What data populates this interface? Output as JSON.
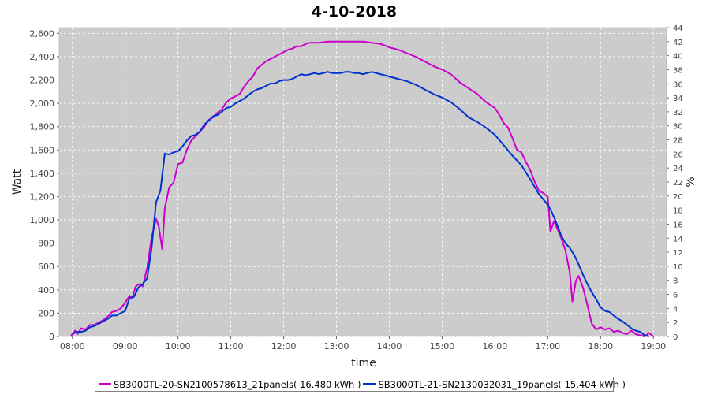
{
  "chart_data": {
    "type": "line",
    "title": "4-10-2018",
    "xlabel": "time",
    "ylabel": "Watt",
    "y2label": "%",
    "x_ticks": [
      "08:00",
      "09:00",
      "10:00",
      "11:00",
      "12:00",
      "13:00",
      "14:00",
      "15:00",
      "16:00",
      "17:00",
      "18:00",
      "19:00"
    ],
    "y_ticks": [
      "0",
      "200",
      "400",
      "600",
      "800",
      "1,000",
      "1,200",
      "1,400",
      "1,600",
      "1,800",
      "2,000",
      "2,200",
      "2,400",
      "2,600"
    ],
    "y2_ticks": [
      "0",
      "2",
      "4",
      "6",
      "8",
      "10",
      "12",
      "14",
      "16",
      "18",
      "20",
      "22",
      "24",
      "26",
      "28",
      "30",
      "32",
      "34",
      "36",
      "38",
      "40",
      "42",
      "44"
    ],
    "xlim": [
      "07:45",
      "19:15"
    ],
    "ylim": [
      0,
      2650
    ],
    "y2lim": [
      0,
      44
    ],
    "grid": true,
    "legend_position": "bottom",
    "plot_background": "#cccccc",
    "series": [
      {
        "name": "SB3000TL-20-SN2100578613_21panels( 16.480 kWh )",
        "color": "#cc00cc",
        "points": [
          [
            "07:58",
            0
          ],
          [
            "08:03",
            50
          ],
          [
            "08:06",
            20
          ],
          [
            "08:10",
            70
          ],
          [
            "08:15",
            60
          ],
          [
            "08:20",
            100
          ],
          [
            "08:25",
            100
          ],
          [
            "08:30",
            120
          ],
          [
            "08:35",
            140
          ],
          [
            "08:40",
            170
          ],
          [
            "08:45",
            210
          ],
          [
            "08:50",
            220
          ],
          [
            "08:55",
            240
          ],
          [
            "09:00",
            290
          ],
          [
            "09:05",
            350
          ],
          [
            "09:08",
            330
          ],
          [
            "09:12",
            430
          ],
          [
            "09:16",
            450
          ],
          [
            "09:20",
            430
          ],
          [
            "09:25",
            590
          ],
          [
            "09:30",
            850
          ],
          [
            "09:35",
            1010
          ],
          [
            "09:38",
            950
          ],
          [
            "09:42",
            750
          ],
          [
            "09:45",
            1100
          ],
          [
            "09:50",
            1280
          ],
          [
            "09:55",
            1320
          ],
          [
            "10:00",
            1480
          ],
          [
            "10:05",
            1490
          ],
          [
            "10:10",
            1600
          ],
          [
            "10:15",
            1680
          ],
          [
            "10:20",
            1720
          ],
          [
            "10:25",
            1760
          ],
          [
            "10:30",
            1800
          ],
          [
            "10:35",
            1860
          ],
          [
            "10:40",
            1880
          ],
          [
            "10:45",
            1920
          ],
          [
            "10:50",
            1950
          ],
          [
            "10:55",
            2010
          ],
          [
            "11:00",
            2040
          ],
          [
            "11:05",
            2060
          ],
          [
            "11:10",
            2080
          ],
          [
            "11:15",
            2140
          ],
          [
            "11:20",
            2190
          ],
          [
            "11:25",
            2230
          ],
          [
            "11:30",
            2300
          ],
          [
            "11:35",
            2330
          ],
          [
            "11:40",
            2360
          ],
          [
            "11:45",
            2380
          ],
          [
            "11:50",
            2400
          ],
          [
            "11:55",
            2420
          ],
          [
            "12:00",
            2440
          ],
          [
            "12:05",
            2460
          ],
          [
            "12:10",
            2470
          ],
          [
            "12:15",
            2490
          ],
          [
            "12:20",
            2490
          ],
          [
            "12:25",
            2510
          ],
          [
            "12:30",
            2520
          ],
          [
            "12:40",
            2520
          ],
          [
            "12:50",
            2530
          ],
          [
            "13:00",
            2530
          ],
          [
            "13:10",
            2530
          ],
          [
            "13:20",
            2530
          ],
          [
            "13:30",
            2530
          ],
          [
            "13:40",
            2520
          ],
          [
            "13:50",
            2510
          ],
          [
            "14:00",
            2480
          ],
          [
            "14:10",
            2460
          ],
          [
            "14:20",
            2430
          ],
          [
            "14:30",
            2400
          ],
          [
            "14:40",
            2360
          ],
          [
            "14:50",
            2320
          ],
          [
            "15:00",
            2290
          ],
          [
            "15:10",
            2250
          ],
          [
            "15:20",
            2180
          ],
          [
            "15:30",
            2130
          ],
          [
            "15:40",
            2080
          ],
          [
            "15:50",
            2010
          ],
          [
            "16:00",
            1960
          ],
          [
            "16:05",
            1900
          ],
          [
            "16:10",
            1830
          ],
          [
            "16:15",
            1790
          ],
          [
            "16:20",
            1700
          ],
          [
            "16:25",
            1600
          ],
          [
            "16:30",
            1580
          ],
          [
            "16:35",
            1500
          ],
          [
            "16:40",
            1430
          ],
          [
            "16:45",
            1330
          ],
          [
            "16:50",
            1250
          ],
          [
            "16:55",
            1230
          ],
          [
            "17:00",
            1200
          ],
          [
            "17:03",
            900
          ],
          [
            "17:07",
            990
          ],
          [
            "17:10",
            940
          ],
          [
            "17:15",
            850
          ],
          [
            "17:20",
            740
          ],
          [
            "17:25",
            550
          ],
          [
            "17:28",
            300
          ],
          [
            "17:32",
            480
          ],
          [
            "17:35",
            520
          ],
          [
            "17:40",
            420
          ],
          [
            "17:45",
            270
          ],
          [
            "17:50",
            110
          ],
          [
            "17:55",
            60
          ],
          [
            "18:00",
            80
          ],
          [
            "18:05",
            60
          ],
          [
            "18:10",
            70
          ],
          [
            "18:15",
            40
          ],
          [
            "18:20",
            50
          ],
          [
            "18:25",
            30
          ],
          [
            "18:30",
            20
          ],
          [
            "18:35",
            50
          ],
          [
            "18:40",
            20
          ],
          [
            "18:45",
            10
          ],
          [
            "18:50",
            0
          ],
          [
            "18:55",
            30
          ],
          [
            "19:00",
            0
          ]
        ]
      },
      {
        "name": "SB3000TL-21-SN2130032031_19panels( 15.404 kWh )",
        "color": "#0033cc",
        "points": [
          [
            "08:00",
            20
          ],
          [
            "08:05",
            40
          ],
          [
            "08:10",
            40
          ],
          [
            "08:15",
            50
          ],
          [
            "08:20",
            80
          ],
          [
            "08:25",
            90
          ],
          [
            "08:30",
            110
          ],
          [
            "08:35",
            130
          ],
          [
            "08:40",
            150
          ],
          [
            "08:45",
            180
          ],
          [
            "08:50",
            180
          ],
          [
            "08:55",
            200
          ],
          [
            "09:00",
            220
          ],
          [
            "09:05",
            330
          ],
          [
            "09:10",
            340
          ],
          [
            "09:15",
            420
          ],
          [
            "09:20",
            450
          ],
          [
            "09:25",
            500
          ],
          [
            "09:30",
            760
          ],
          [
            "09:35",
            1150
          ],
          [
            "09:40",
            1250
          ],
          [
            "09:45",
            1570
          ],
          [
            "09:50",
            1560
          ],
          [
            "09:55",
            1580
          ],
          [
            "10:00",
            1590
          ],
          [
            "10:05",
            1630
          ],
          [
            "10:10",
            1680
          ],
          [
            "10:15",
            1720
          ],
          [
            "10:20",
            1730
          ],
          [
            "10:25",
            1760
          ],
          [
            "10:30",
            1820
          ],
          [
            "10:35",
            1850
          ],
          [
            "10:40",
            1890
          ],
          [
            "10:45",
            1900
          ],
          [
            "10:50",
            1930
          ],
          [
            "10:55",
            1960
          ],
          [
            "11:00",
            1970
          ],
          [
            "11:05",
            2000
          ],
          [
            "11:10",
            2020
          ],
          [
            "11:15",
            2040
          ],
          [
            "11:20",
            2070
          ],
          [
            "11:25",
            2100
          ],
          [
            "11:30",
            2120
          ],
          [
            "11:35",
            2130
          ],
          [
            "11:40",
            2150
          ],
          [
            "11:45",
            2170
          ],
          [
            "11:50",
            2170
          ],
          [
            "11:55",
            2190
          ],
          [
            "12:00",
            2200
          ],
          [
            "12:05",
            2200
          ],
          [
            "12:10",
            2210
          ],
          [
            "12:15",
            2230
          ],
          [
            "12:20",
            2250
          ],
          [
            "12:25",
            2240
          ],
          [
            "12:30",
            2250
          ],
          [
            "12:35",
            2260
          ],
          [
            "12:40",
            2250
          ],
          [
            "12:45",
            2260
          ],
          [
            "12:50",
            2270
          ],
          [
            "12:55",
            2260
          ],
          [
            "13:00",
            2260
          ],
          [
            "13:05",
            2260
          ],
          [
            "13:10",
            2270
          ],
          [
            "13:15",
            2270
          ],
          [
            "13:20",
            2260
          ],
          [
            "13:25",
            2260
          ],
          [
            "13:30",
            2250
          ],
          [
            "13:35",
            2260
          ],
          [
            "13:40",
            2270
          ],
          [
            "13:45",
            2260
          ],
          [
            "13:50",
            2250
          ],
          [
            "13:55",
            2240
          ],
          [
            "14:00",
            2230
          ],
          [
            "14:10",
            2210
          ],
          [
            "14:20",
            2190
          ],
          [
            "14:30",
            2160
          ],
          [
            "14:40",
            2120
          ],
          [
            "14:50",
            2080
          ],
          [
            "15:00",
            2050
          ],
          [
            "15:10",
            2010
          ],
          [
            "15:20",
            1950
          ],
          [
            "15:30",
            1880
          ],
          [
            "15:40",
            1840
          ],
          [
            "15:50",
            1790
          ],
          [
            "16:00",
            1730
          ],
          [
            "16:10",
            1640
          ],
          [
            "16:20",
            1550
          ],
          [
            "16:30",
            1470
          ],
          [
            "16:40",
            1350
          ],
          [
            "16:50",
            1220
          ],
          [
            "17:00",
            1130
          ],
          [
            "17:05",
            1060
          ],
          [
            "17:10",
            970
          ],
          [
            "17:15",
            870
          ],
          [
            "17:20",
            800
          ],
          [
            "17:25",
            760
          ],
          [
            "17:30",
            700
          ],
          [
            "17:35",
            620
          ],
          [
            "17:40",
            530
          ],
          [
            "17:45",
            450
          ],
          [
            "17:50",
            380
          ],
          [
            "17:55",
            320
          ],
          [
            "18:00",
            250
          ],
          [
            "18:05",
            220
          ],
          [
            "18:10",
            210
          ],
          [
            "18:15",
            180
          ],
          [
            "18:20",
            150
          ],
          [
            "18:25",
            130
          ],
          [
            "18:30",
            100
          ],
          [
            "18:35",
            70
          ],
          [
            "18:40",
            50
          ],
          [
            "18:45",
            40
          ],
          [
            "18:50",
            10
          ],
          [
            "18:55",
            0
          ]
        ]
      }
    ]
  }
}
